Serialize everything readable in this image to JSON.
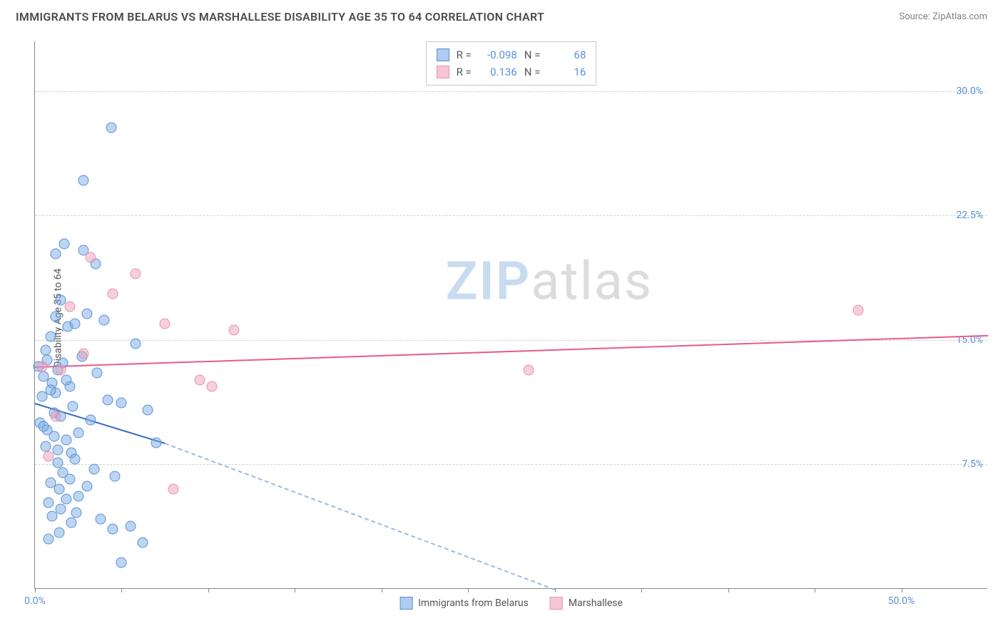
{
  "header": {
    "title": "IMMIGRANTS FROM BELARUS VS MARSHALLESE DISABILITY AGE 35 TO 64 CORRELATION CHART",
    "source": "Source: ZipAtlas.com"
  },
  "chart": {
    "type": "scatter",
    "ylabel": "Disability Age 35 to 64",
    "xlim": [
      0,
      55
    ],
    "ylim": [
      0,
      33
    ],
    "y_ticks": [
      7.5,
      15.0,
      22.5,
      30.0
    ],
    "y_tick_labels": [
      "7.5%",
      "15.0%",
      "22.5%",
      "30.0%"
    ],
    "x_ticks": [
      0,
      5,
      10,
      15,
      20,
      25,
      30,
      35,
      40,
      45,
      50
    ],
    "x_tick_labels": {
      "start": "0.0%",
      "end": "50.0%"
    },
    "grid_color": "#d0d0d0",
    "axis_color": "#888888",
    "tick_label_color": "#5b8fd6",
    "background_color": "#ffffff",
    "series": [
      {
        "name": "Immigrants from Belarus",
        "marker_fill": "rgba(122,171,230,0.50)",
        "marker_stroke": "#5b8fd6",
        "line_color": "#3a6fc4",
        "dash_color": "#9cb9e0",
        "marker_size": 15,
        "R": -0.098,
        "N": 68,
        "regression": {
          "x0": 0,
          "y0": 11.2,
          "x_solid_end": 7.5,
          "y_solid_end": 8.8,
          "x_dash_end": 30,
          "y_dash_end": 0
        },
        "points": [
          [
            0.2,
            13.4
          ],
          [
            0.3,
            10.0
          ],
          [
            0.4,
            11.6
          ],
          [
            0.5,
            12.8
          ],
          [
            0.6,
            8.6
          ],
          [
            0.6,
            14.4
          ],
          [
            0.7,
            9.6
          ],
          [
            0.7,
            13.8
          ],
          [
            0.8,
            3.0
          ],
          [
            0.8,
            5.2
          ],
          [
            0.9,
            6.4
          ],
          [
            0.9,
            15.2
          ],
          [
            1.0,
            4.4
          ],
          [
            1.0,
            12.4
          ],
          [
            1.1,
            9.2
          ],
          [
            1.1,
            10.6
          ],
          [
            1.2,
            11.8
          ],
          [
            1.2,
            16.4
          ],
          [
            1.2,
            20.2
          ],
          [
            1.3,
            7.6
          ],
          [
            1.3,
            13.2
          ],
          [
            1.4,
            3.4
          ],
          [
            1.4,
            6.0
          ],
          [
            1.5,
            4.8
          ],
          [
            1.5,
            10.4
          ],
          [
            1.5,
            17.4
          ],
          [
            1.6,
            7.0
          ],
          [
            1.6,
            13.6
          ],
          [
            1.7,
            20.8
          ],
          [
            1.8,
            5.4
          ],
          [
            1.8,
            9.0
          ],
          [
            1.9,
            15.8
          ],
          [
            2.0,
            6.6
          ],
          [
            2.0,
            12.2
          ],
          [
            2.1,
            4.0
          ],
          [
            2.1,
            8.2
          ],
          [
            2.2,
            11.0
          ],
          [
            2.3,
            16.0
          ],
          [
            2.4,
            4.6
          ],
          [
            2.5,
            5.6
          ],
          [
            2.5,
            9.4
          ],
          [
            2.7,
            14.0
          ],
          [
            2.8,
            24.6
          ],
          [
            2.8,
            20.4
          ],
          [
            3.0,
            6.2
          ],
          [
            3.0,
            16.6
          ],
          [
            3.2,
            10.2
          ],
          [
            3.4,
            7.2
          ],
          [
            3.5,
            19.6
          ],
          [
            3.6,
            13.0
          ],
          [
            3.8,
            4.2
          ],
          [
            4.0,
            16.2
          ],
          [
            4.2,
            11.4
          ],
          [
            4.4,
            27.8
          ],
          [
            4.5,
            3.6
          ],
          [
            4.6,
            6.8
          ],
          [
            5.0,
            1.6
          ],
          [
            5.0,
            11.2
          ],
          [
            5.5,
            3.8
          ],
          [
            5.8,
            14.8
          ],
          [
            6.2,
            2.8
          ],
          [
            6.5,
            10.8
          ],
          [
            7.0,
            8.8
          ],
          [
            0.5,
            9.8
          ],
          [
            0.9,
            12.0
          ],
          [
            1.3,
            8.4
          ],
          [
            1.8,
            12.6
          ],
          [
            2.3,
            7.8
          ]
        ]
      },
      {
        "name": "Marshallese",
        "marker_fill": "rgba(238,160,186,0.50)",
        "marker_stroke": "#e88fb0",
        "line_color": "#e85a8a",
        "marker_size": 15,
        "R": 0.136,
        "N": 16,
        "regression": {
          "x0": 0,
          "y0": 13.4,
          "x1": 55,
          "y1": 15.3
        },
        "points": [
          [
            0.4,
            13.4
          ],
          [
            0.8,
            8.0
          ],
          [
            1.2,
            10.4
          ],
          [
            1.5,
            13.2
          ],
          [
            2.0,
            17.0
          ],
          [
            2.8,
            14.2
          ],
          [
            3.2,
            20.0
          ],
          [
            4.5,
            17.8
          ],
          [
            5.8,
            19.0
          ],
          [
            7.5,
            16.0
          ],
          [
            8.0,
            6.0
          ],
          [
            9.5,
            12.6
          ],
          [
            10.2,
            12.2
          ],
          [
            11.5,
            15.6
          ],
          [
            28.5,
            13.2
          ],
          [
            47.5,
            16.8
          ]
        ]
      }
    ],
    "legend_top": {
      "rows": [
        {
          "swatch": "blue",
          "r_label": "R =",
          "r_value": "-0.098",
          "n_label": "N =",
          "n_value": "68"
        },
        {
          "swatch": "pink",
          "r_label": "R =",
          "r_value": "0.136",
          "n_label": "N =",
          "n_value": "16"
        }
      ]
    },
    "legend_bottom": [
      {
        "swatch": "blue",
        "label": "Immigrants from Belarus"
      },
      {
        "swatch": "pink",
        "label": "Marshallese"
      }
    ],
    "watermark": {
      "part1": "ZIP",
      "part2": "atlas"
    }
  }
}
